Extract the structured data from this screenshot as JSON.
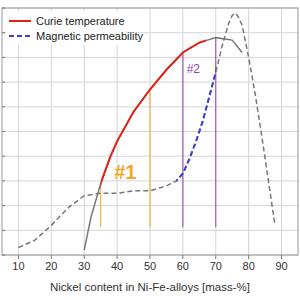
{
  "chart_data": {
    "type": "line",
    "x_label": "Nickel content in Ni-Fe-alloys [mass-%]",
    "xlim": [
      5,
      95
    ],
    "xticks": [
      10,
      20,
      30,
      40,
      50,
      60,
      70,
      80,
      90
    ],
    "ylim": [
      0,
      10
    ],
    "yticks": [
      0,
      1,
      2,
      3,
      4,
      5,
      6,
      7,
      8,
      9,
      10
    ],
    "grid": true,
    "tick_labels": "x",
    "legend": "top-left",
    "series": [
      {
        "name": "Curie temperature",
        "color": "#e3231b",
        "line_style": "solid",
        "x": [
          30,
          32,
          35,
          38,
          40,
          45,
          50,
          55,
          60,
          65,
          70,
          75,
          78
        ],
        "values": [
          0.2,
          1.5,
          2.9,
          4.0,
          4.6,
          5.8,
          6.7,
          7.5,
          8.2,
          8.6,
          8.8,
          8.7,
          8.2
        ],
        "highlight": [
          35,
          67
        ]
      },
      {
        "name": "Magnetic permeability",
        "color": "#3b3bdc",
        "line_style": "dashed",
        "x": [
          10,
          15,
          20,
          25,
          30,
          35,
          40,
          45,
          50,
          55,
          58,
          60,
          62,
          64,
          66,
          68,
          70,
          72,
          74,
          75,
          76,
          77,
          78,
          80,
          82,
          84,
          86,
          88
        ],
        "values": [
          0.3,
          0.6,
          1.2,
          1.9,
          2.4,
          2.5,
          2.5,
          2.6,
          2.6,
          2.8,
          3.0,
          3.3,
          3.9,
          4.6,
          5.4,
          6.4,
          7.4,
          8.5,
          9.4,
          9.7,
          9.8,
          9.6,
          9.3,
          8.0,
          6.5,
          4.8,
          3.0,
          1.2
        ],
        "highlight": [
          58,
          70
        ]
      }
    ],
    "regions": [
      {
        "label": "#1",
        "x": [
          35,
          50
        ],
        "color": "#f5a623"
      },
      {
        "label": "#2",
        "x": [
          60,
          70
        ],
        "color": "#8e44ad"
      }
    ]
  }
}
